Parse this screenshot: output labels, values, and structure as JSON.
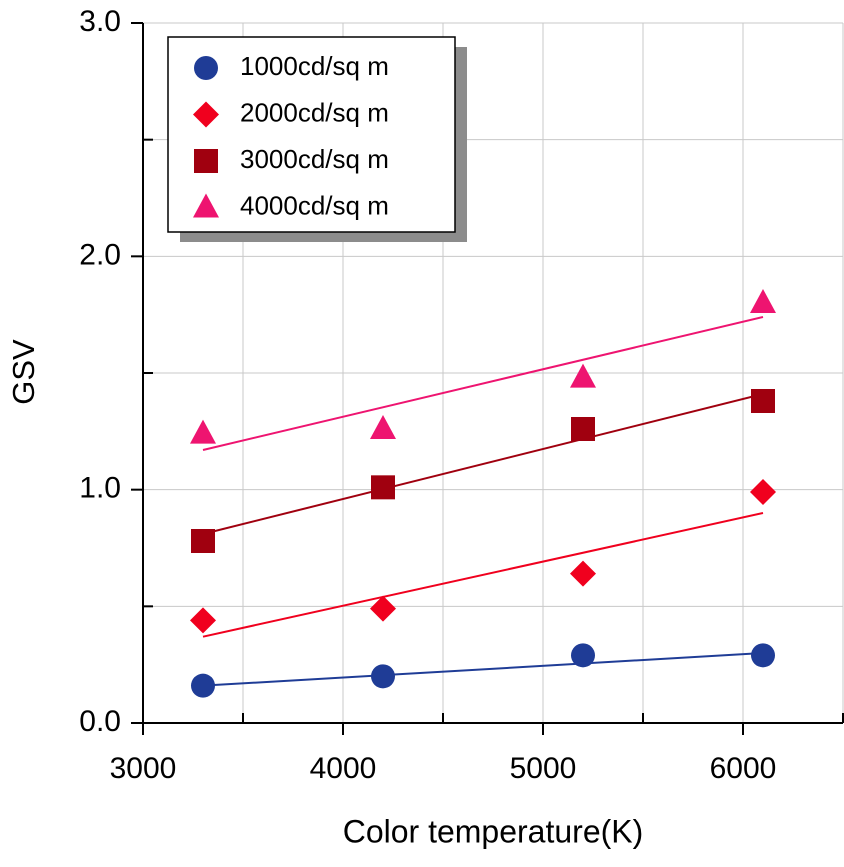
{
  "chart_data": {
    "type": "scatter",
    "xlabel": "Color temperature(K)",
    "ylabel": "GSV",
    "xlim": [
      3000,
      6500
    ],
    "ylim": [
      0,
      3
    ],
    "xticks": [
      3000,
      4000,
      5000,
      6000
    ],
    "x_minor_ticks": [
      3500,
      4500,
      5500,
      6500
    ],
    "yticks": [
      {
        "value": 0,
        "label": "0.0"
      },
      {
        "value": 1,
        "label": "1.0"
      },
      {
        "value": 2,
        "label": "2.0"
      },
      {
        "value": 3,
        "label": "3.0"
      }
    ],
    "y_minor_ticks": [
      0.5,
      1.5,
      2.5
    ],
    "grid": true,
    "legend": "upper left",
    "series": [
      {
        "name": "1000cd/sq m",
        "color": "#1f3c96",
        "marker": "circle",
        "x": [
          3300,
          4200,
          5200,
          6100
        ],
        "values": [
          0.16,
          0.2,
          0.29,
          0.29
        ],
        "trendline": {
          "x": [
            3300,
            6100
          ],
          "values": [
            0.16,
            0.3
          ]
        }
      },
      {
        "name": "2000cd/sq m",
        "color": "#f0001e",
        "marker": "diamond",
        "x": [
          3300,
          4200,
          5200,
          6100
        ],
        "values": [
          0.44,
          0.49,
          0.64,
          0.99
        ],
        "trendline": {
          "x": [
            3300,
            6100
          ],
          "values": [
            0.37,
            0.9
          ]
        }
      },
      {
        "name": "3000cd/sq m",
        "color": "#a0000f",
        "marker": "square",
        "x": [
          3300,
          4200,
          5200,
          6100
        ],
        "values": [
          0.78,
          1.01,
          1.26,
          1.38
        ],
        "trendline": {
          "x": [
            3300,
            6100
          ],
          "values": [
            0.81,
            1.41
          ]
        }
      },
      {
        "name": "4000cd/sq m",
        "color": "#ee1470",
        "marker": "triangle",
        "x": [
          3300,
          4200,
          5200,
          6100
        ],
        "values": [
          1.24,
          1.26,
          1.48,
          1.8
        ],
        "trendline": {
          "x": [
            3300,
            6100
          ],
          "values": [
            1.17,
            1.74
          ]
        }
      }
    ]
  }
}
